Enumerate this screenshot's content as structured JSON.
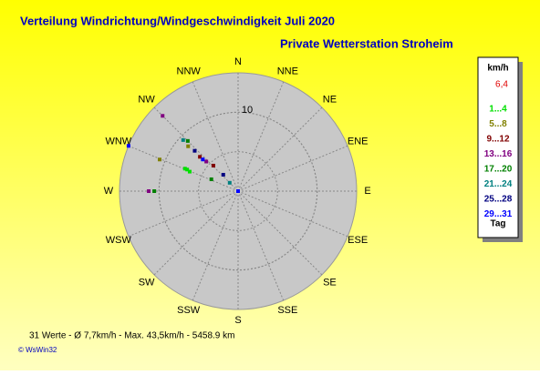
{
  "chart_data": {
    "type": "polar-scatter",
    "title": "Verteilung Windrichtung/Windgeschwindigkeit  Juli 2020",
    "subtitle": "Private Wetterstation Stroheim",
    "directions": [
      "N",
      "NNE",
      "NE",
      "ENE",
      "E",
      "ESE",
      "SE",
      "SSE",
      "S",
      "SSW",
      "SW",
      "WSW",
      "W",
      "WNW",
      "NW",
      "NNW"
    ],
    "rlim": [
      0,
      15
    ],
    "rticks": [
      10
    ],
    "legend_title": "km/h",
    "legend_current": "6,4",
    "legend_footer": "Tag",
    "series": [
      {
        "name": "1...4",
        "color": "#00e000",
        "dir": [
          293,
          293,
          292
        ],
        "values": [
          7.3,
          7.0,
          6.6
        ]
      },
      {
        "name": "5...8",
        "color": "#808000",
        "dir": [
          292,
          312
        ],
        "values": [
          10.7,
          8.5
        ]
      },
      {
        "name": "9...12",
        "color": "#800000",
        "dir": [
          316,
          312
        ],
        "values": [
          4.5,
          6.5
        ]
      },
      {
        "name": "13...16",
        "color": "#800080",
        "dir": [
          315,
          270,
          313
        ],
        "values": [
          13.5,
          11.3,
          5.5
        ]
      },
      {
        "name": "17...20",
        "color": "#008000",
        "dir": [
          270,
          294,
          315
        ],
        "values": [
          10.6,
          3.7,
          9
        ]
      },
      {
        "name": "21...24",
        "color": "#008080",
        "dir": [
          313,
          315,
          0
        ],
        "values": [
          9.5,
          1.5,
          0
        ]
      },
      {
        "name": "25...28",
        "color": "#000080",
        "dir": [
          318,
          313,
          0
        ],
        "values": [
          2.8,
          7.5,
          0
        ]
      },
      {
        "name": "29...31",
        "color": "#0000ff",
        "dir": [
          292.5,
          312,
          0
        ],
        "values": [
          15,
          6,
          0
        ]
      }
    ],
    "footer": "31 Werte   -   Ø 7,7km/h   -   Max. 43,5km/h   -   5458.9 km",
    "copyright": "© WsWin32"
  }
}
